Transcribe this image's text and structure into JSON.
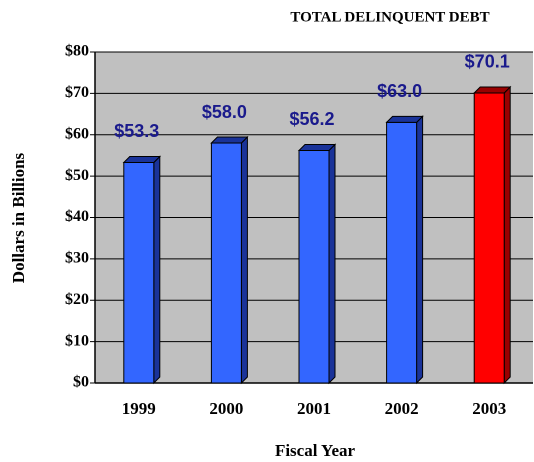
{
  "chart_data": {
    "type": "bar",
    "title": "TOTAL DELINQUENT DEBT",
    "xlabel": "Fiscal Year",
    "ylabel": "Dollars in Billions",
    "categories": [
      "1999",
      "2000",
      "2001",
      "2002",
      "2003"
    ],
    "values": [
      53.3,
      58.0,
      56.2,
      63.0,
      70.1
    ],
    "value_labels": [
      "$53.3",
      "$58.0",
      "$56.2",
      "$63.0",
      "$70.1"
    ],
    "colors": [
      "#3366ff",
      "#3366ff",
      "#3366ff",
      "#3366ff",
      "#ff0000"
    ],
    "ylim": [
      0,
      80
    ],
    "yticks": [
      {
        "value": 0,
        "label": "$0"
      },
      {
        "value": 10,
        "label": "$10"
      },
      {
        "value": 20,
        "label": "$20"
      },
      {
        "value": 30,
        "label": "$30"
      },
      {
        "value": 40,
        "label": "$40"
      },
      {
        "value": 50,
        "label": "$50"
      },
      {
        "value": 60,
        "label": "$60"
      },
      {
        "value": 70,
        "label": "$70"
      },
      {
        "value": 80,
        "label": "$80"
      }
    ],
    "grid": true
  }
}
